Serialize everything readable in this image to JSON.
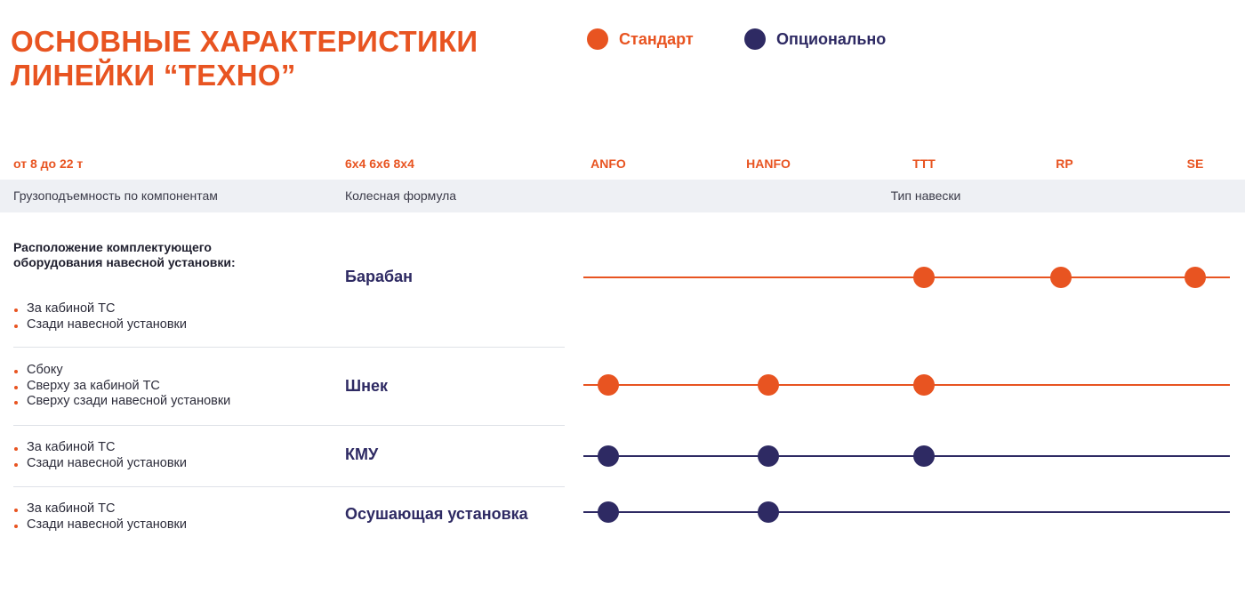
{
  "title": {
    "line1": "ОСНОВНЫЕ ХАРАКТЕРИСТИКИ",
    "line2": "ЛИНЕЙКИ “ТЕХНО”"
  },
  "legend": {
    "standard": "Стандарт",
    "optional": "Опционально"
  },
  "colors": {
    "standard": "#e85421",
    "optional": "#2e2a63"
  },
  "header": {
    "capacity": "от 8 до 22 т",
    "wheels": "6x4 6x6 8x4",
    "columns": [
      "ANFO",
      "HANFO",
      "ТТТ",
      "RP",
      "SE"
    ]
  },
  "band": {
    "capacity_label": "Грузоподъемность по компонентам",
    "wheels_label": "Колесная формула",
    "mount_label": "Тип навески"
  },
  "location_heading": {
    "line1": "Расположение комплектующего",
    "line2": "оборудования навесной установки:"
  },
  "rows": [
    {
      "name": "Барабан",
      "bullets": [
        "За кабиной ТС",
        "Сзади навесной установки"
      ],
      "line_type": "standard",
      "marks": [
        {
          "column": "ТТТ",
          "type": "standard"
        },
        {
          "column": "RP",
          "type": "standard"
        },
        {
          "column": "SE",
          "type": "standard"
        }
      ]
    },
    {
      "name": "Шнек",
      "bullets": [
        "Сбоку",
        "Сверху за кабиной ТС",
        "Сверху сзади навесной установки"
      ],
      "line_type": "standard",
      "marks": [
        {
          "column": "ANFO",
          "type": "standard"
        },
        {
          "column": "HANFO",
          "type": "standard"
        },
        {
          "column": "ТТТ",
          "type": "standard"
        }
      ]
    },
    {
      "name": "КМУ",
      "bullets": [
        "За кабиной ТС",
        "Сзади навесной установки"
      ],
      "line_type": "optional",
      "marks": [
        {
          "column": "ANFO",
          "type": "optional"
        },
        {
          "column": "HANFO",
          "type": "optional"
        },
        {
          "column": "ТТТ",
          "type": "optional"
        }
      ]
    },
    {
      "name": "Осушающая установка",
      "bullets": [
        "За кабиной ТС",
        "Сзади навесной установки"
      ],
      "line_type": "optional",
      "marks": [
        {
          "column": "ANFO",
          "type": "optional"
        },
        {
          "column": "HANFO",
          "type": "optional"
        }
      ]
    }
  ]
}
